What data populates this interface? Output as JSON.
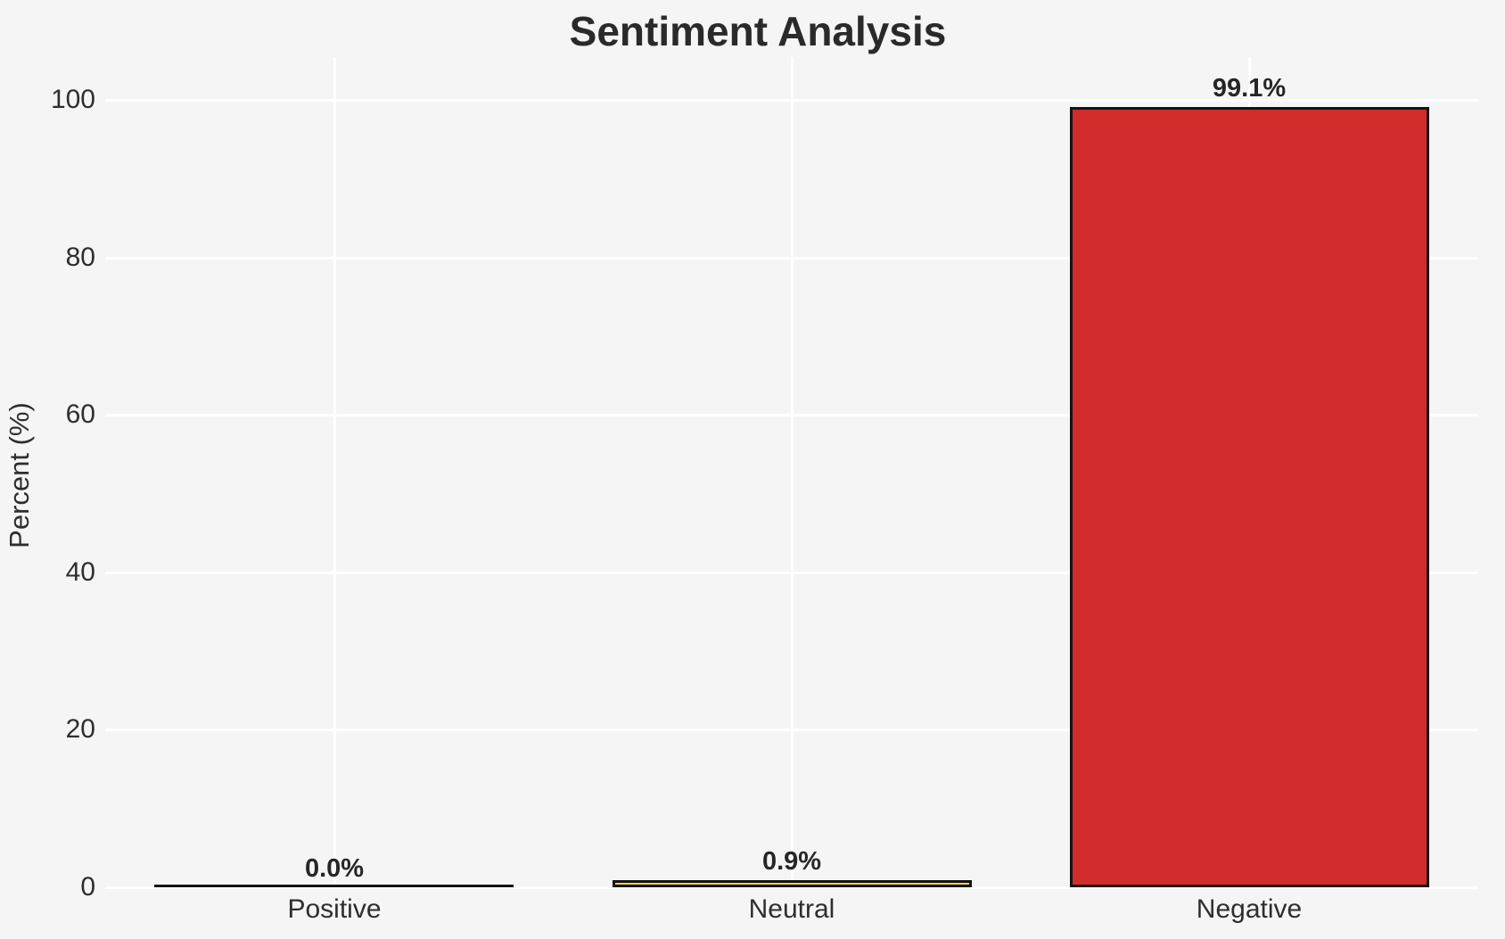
{
  "title": "Sentiment Analysis",
  "colors": {
    "background": "#f5f5f5",
    "gridline": "#ffffff",
    "bar_edge": "#141414",
    "title_text": "#2a2a2a",
    "tick_text": "#2e2e2e"
  },
  "chart_data": {
    "type": "bar",
    "title": "Sentiment Analysis",
    "xlabel": "",
    "ylabel": "Percent (%)",
    "categories": [
      "Positive",
      "Neutral",
      "Negative"
    ],
    "values": [
      0.0,
      0.9,
      99.1
    ],
    "value_labels": [
      "0.0%",
      "0.9%",
      "99.1%"
    ],
    "bar_colors": [
      "#f5f5f5",
      "#f4d03f",
      "#d22b2b"
    ],
    "bar_edge_color": "#141414",
    "ylim": [
      0,
      100
    ],
    "yticks": [
      0,
      20,
      40,
      60,
      80,
      100
    ],
    "ytick_labels": [
      "0",
      "20",
      "40",
      "60",
      "80",
      "100"
    ],
    "grid": "on",
    "grid_color": "#ffffff",
    "legend": "none"
  }
}
